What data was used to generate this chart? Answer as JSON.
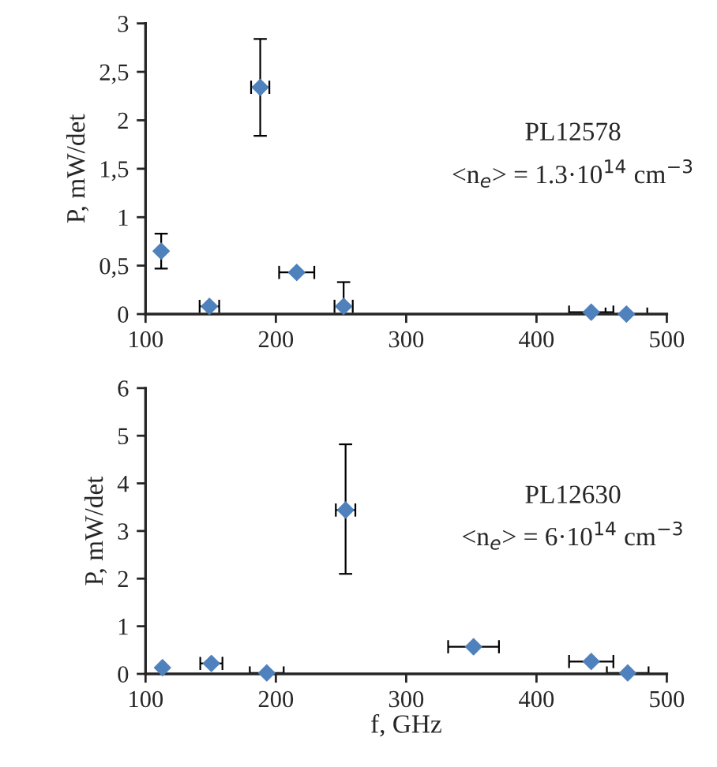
{
  "chart_data": [
    {
      "type": "scatter",
      "ylabel": "P, mW/det",
      "marker": "diamond",
      "grid": false,
      "annotations": [
        "PL12578",
        "<n$_{e}$> = 1.3·10$^{14}$ cm$^{−3}$"
      ],
      "xlim": [
        100,
        500
      ],
      "xticks": [
        100,
        200,
        300,
        400,
        500
      ],
      "ylim": [
        0,
        3
      ],
      "yticks": [
        0,
        {
          "value": 0.5,
          "label": "0,5"
        },
        1,
        {
          "value": 1.5,
          "label": "1,5"
        },
        2,
        {
          "value": 2.5,
          "label": "2,5"
        },
        3
      ],
      "series": [
        {
          "color": "#4f81bd",
          "x": [
            112,
            149,
            188,
            216,
            252,
            442,
            469
          ],
          "values": [
            0.65,
            0.08,
            2.34,
            0.43,
            0.08,
            0.02,
            0
          ],
          "errors": [
            0.18,
            null,
            0.5,
            null,
            [
              0,
              0.33
            ],
            null,
            null
          ],
          "xerrors": [
            null,
            7.5,
            7,
            13.5,
            7,
            17,
            16
          ]
        }
      ]
    },
    {
      "type": "scatter",
      "xlabel": "f, GHz",
      "ylabel": "P, mW/det",
      "marker": "diamond",
      "grid": false,
      "annotations": [
        "PL12630",
        "<n$_{e}$> = 6·10$^{14}$ cm$^{−3}$"
      ],
      "xlim": [
        100,
        500
      ],
      "xticks": [
        100,
        200,
        300,
        400,
        500
      ],
      "ylim": [
        0,
        6
      ],
      "yticks": [
        0,
        1,
        2,
        3,
        4,
        5,
        6
      ],
      "series": [
        {
          "color": "#4f81bd",
          "x": [
            113,
            150.5,
            193,
            253.5,
            351.7,
            442,
            470
          ],
          "values": [
            0.13,
            0.22,
            0.02,
            3.44,
            0.57,
            0.26,
            0.02
          ],
          "errors": [
            null,
            null,
            null,
            [
              2.1,
              4.82
            ],
            null,
            null,
            null
          ],
          "xerrors": [
            null,
            8.5,
            13,
            7.5,
            19.5,
            17,
            16
          ]
        }
      ]
    }
  ]
}
